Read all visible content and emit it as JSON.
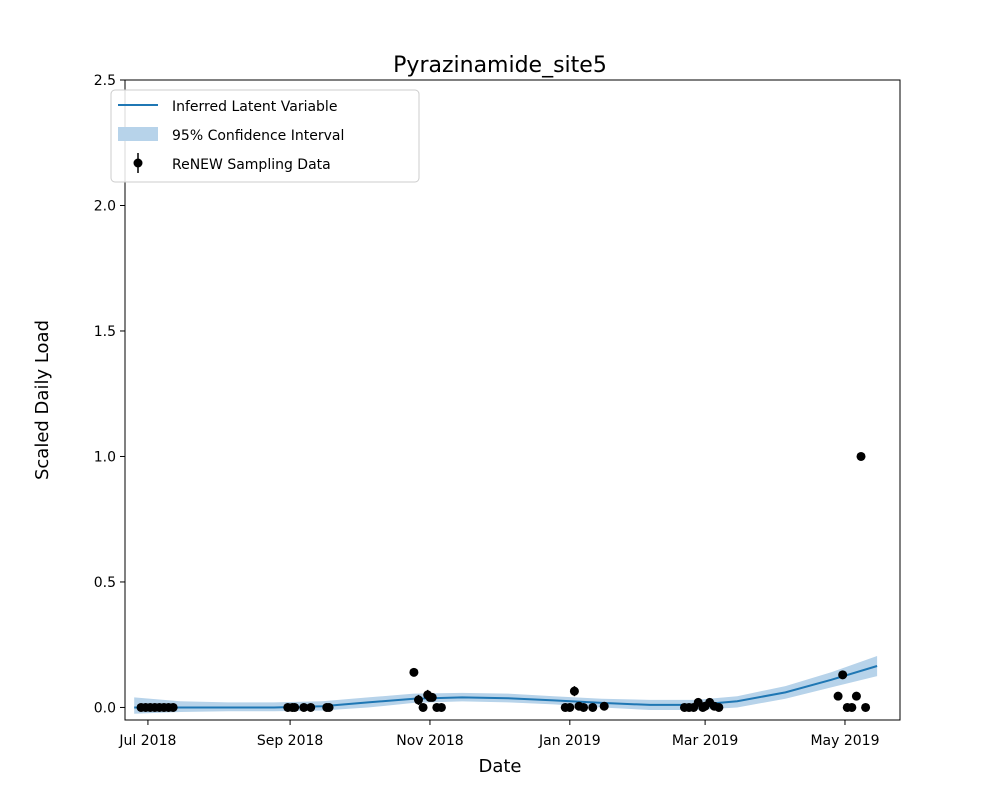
{
  "chart_data": {
    "type": "line",
    "title": "Pyrazinamide_site5",
    "xlabel": "Date",
    "ylabel": "Scaled Daily Load",
    "xlim": [
      "2018-06-21",
      "2019-05-25"
    ],
    "ylim": [
      -0.05,
      2.5
    ],
    "x_ticks": [
      "2018-07-01",
      "2018-09-01",
      "2018-11-01",
      "2019-01-01",
      "2019-03-01",
      "2019-05-01"
    ],
    "x_tick_labels": [
      "Jul 2018",
      "Sep 2018",
      "Nov 2018",
      "Jan 2019",
      "Mar 2019",
      "May 2019"
    ],
    "y_ticks": [
      0.0,
      0.5,
      1.0,
      1.5,
      2.0,
      2.5
    ],
    "y_tick_labels": [
      "0.0",
      "0.5",
      "1.0",
      "1.5",
      "2.0",
      "2.5"
    ],
    "grid": false,
    "legend_position": "top-left",
    "colors": {
      "line": "#1f77b4",
      "band": "#b7d3ea",
      "points": "#000000"
    },
    "series": [
      {
        "name": "Inferred Latent Variable",
        "kind": "line",
        "x": [
          "2018-06-25",
          "2018-07-15",
          "2018-08-05",
          "2018-08-25",
          "2018-09-15",
          "2018-10-05",
          "2018-10-25",
          "2018-11-15",
          "2018-12-05",
          "2018-12-25",
          "2019-01-15",
          "2019-02-05",
          "2019-02-25",
          "2019-03-15",
          "2019-04-05",
          "2019-04-25",
          "2019-05-15"
        ],
        "y": [
          0.0,
          0.0,
          0.0,
          0.0,
          0.005,
          0.02,
          0.035,
          0.04,
          0.037,
          0.028,
          0.018,
          0.01,
          0.01,
          0.025,
          0.06,
          0.11,
          0.165
        ]
      },
      {
        "name": "95% Confidence Interval",
        "kind": "band",
        "x": [
          "2018-06-25",
          "2018-07-15",
          "2018-08-05",
          "2018-08-25",
          "2018-09-15",
          "2018-10-05",
          "2018-10-25",
          "2018-11-15",
          "2018-12-05",
          "2018-12-25",
          "2019-01-15",
          "2019-02-05",
          "2019-02-25",
          "2019-03-15",
          "2019-04-05",
          "2019-04-25",
          "2019-05-15"
        ],
        "lower": [
          -0.025,
          -0.018,
          -0.015,
          -0.015,
          -0.012,
          0.0,
          0.018,
          0.024,
          0.02,
          0.012,
          0.0,
          -0.01,
          -0.01,
          0.0,
          0.035,
          0.08,
          0.125
        ],
        "upper": [
          0.04,
          0.025,
          0.02,
          0.02,
          0.025,
          0.04,
          0.055,
          0.058,
          0.055,
          0.045,
          0.035,
          0.03,
          0.03,
          0.045,
          0.085,
          0.14,
          0.205
        ]
      },
      {
        "name": "ReNEW Sampling Data",
        "kind": "scatter",
        "x": [
          "2018-06-28",
          "2018-06-30",
          "2018-07-02",
          "2018-07-04",
          "2018-07-06",
          "2018-07-08",
          "2018-07-10",
          "2018-07-12",
          "2018-08-31",
          "2018-09-02",
          "2018-09-03",
          "2018-09-07",
          "2018-09-10",
          "2018-09-17",
          "2018-09-18",
          "2018-10-25",
          "2018-10-27",
          "2018-10-29",
          "2018-10-31",
          "2018-11-01",
          "2018-11-02",
          "2018-11-04",
          "2018-11-06",
          "2018-12-30",
          "2019-01-01",
          "2019-01-03",
          "2019-01-05",
          "2019-01-07",
          "2019-01-11",
          "2019-01-16",
          "2019-02-20",
          "2019-02-22",
          "2019-02-24",
          "2019-02-26",
          "2019-02-28",
          "2019-03-01",
          "2019-03-03",
          "2019-03-05",
          "2019-03-07",
          "2019-04-28",
          "2019-04-30",
          "2019-05-02",
          "2019-05-04",
          "2019-05-06",
          "2019-05-08",
          "2019-05-10"
        ],
        "y": [
          0.0,
          0.0,
          0.0,
          0.0,
          0.0,
          0.0,
          0.0,
          0.0,
          0.0,
          0.0,
          0.0,
          0.0,
          0.0,
          0.0,
          0.0,
          0.14,
          0.03,
          0.0,
          0.05,
          0.04,
          0.04,
          0.0,
          0.0,
          0.0,
          0.0,
          0.065,
          0.005,
          0.0,
          0.0,
          0.005,
          0.0,
          0.0,
          0.0,
          0.02,
          0.0,
          0.005,
          0.02,
          0.005,
          0.0,
          0.045,
          0.13,
          0.0,
          0.0,
          0.045,
          1.0,
          0.0
        ],
        "err": [
          0.003,
          0.003,
          0.003,
          0.003,
          0.003,
          0.003,
          0.003,
          0.003,
          0.003,
          0.003,
          0.003,
          0.003,
          0.003,
          0.003,
          0.003,
          0.005,
          0.02,
          0.003,
          0.02,
          0.01,
          0.01,
          0.003,
          0.003,
          0.003,
          0.003,
          0.02,
          0.003,
          0.003,
          0.003,
          0.003,
          0.003,
          0.003,
          0.003,
          0.008,
          0.003,
          0.003,
          0.008,
          0.003,
          0.003,
          0.005,
          0.015,
          0.003,
          0.003,
          0.005,
          0.005,
          0.003
        ]
      }
    ]
  }
}
